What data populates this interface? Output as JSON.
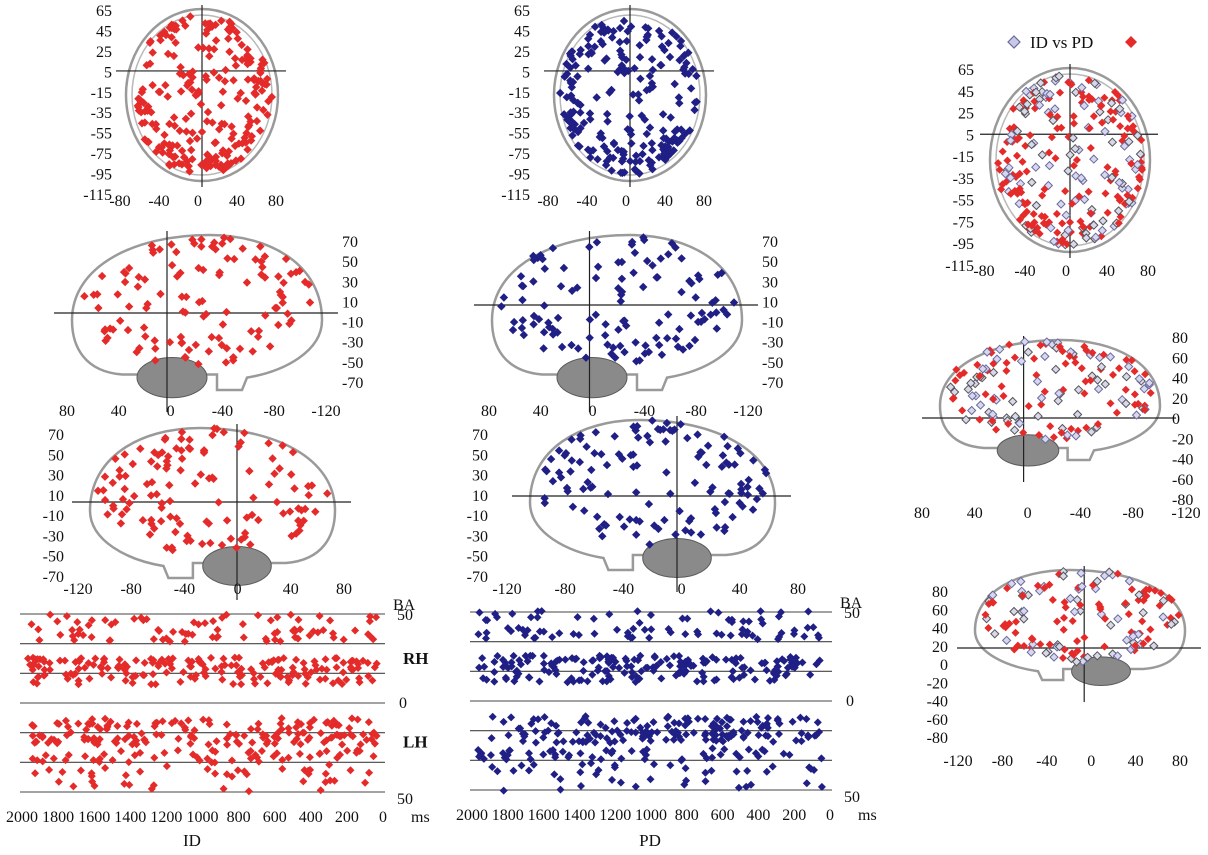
{
  "colors": {
    "ID": "#e52a2a",
    "PD": "#1f1f86",
    "PD_legend": "#8a8ab8",
    "overlay_gray": "#6a6a6a"
  },
  "captions": {
    "id": "ID",
    "pd": "PD"
  },
  "legend": {
    "text": "ID vs PD"
  },
  "time_axis": {
    "labels": [
      "2000",
      "1800",
      "1600",
      "1400",
      "1200",
      "1000",
      "800",
      "600",
      "400",
      "200",
      "0"
    ],
    "unit": "ms",
    "ba_label": "BA",
    "ba_top": "50",
    "ba_mid": "0",
    "ba_bottom": "50",
    "rh": "RH",
    "lh": "LH"
  },
  "chart_data": [
    {
      "panel": "ID-axial",
      "type": "scatter",
      "series": [
        {
          "name": "ID",
          "color": "#e52a2a"
        }
      ],
      "x_ticks": [
        "-80",
        "-40",
        "0",
        "40",
        "80"
      ],
      "y_ticks": [
        "65",
        "45",
        "25",
        "5",
        "-15",
        "-35",
        "-55",
        "-75",
        "-95",
        "-115"
      ],
      "xlim": [
        -80,
        80
      ],
      "ylim": [
        -115,
        65
      ]
    },
    {
      "panel": "PD-axial",
      "type": "scatter",
      "series": [
        {
          "name": "PD",
          "color": "#1f1f86"
        }
      ],
      "x_ticks": [
        "-80",
        "-40",
        "0",
        "40",
        "80"
      ],
      "y_ticks": [
        "65",
        "45",
        "25",
        "5",
        "-15",
        "-35",
        "-55",
        "-75",
        "-95",
        "-115"
      ],
      "xlim": [
        -80,
        80
      ],
      "ylim": [
        -115,
        65
      ]
    },
    {
      "panel": "ID-sagittal-right",
      "type": "scatter",
      "series": [
        {
          "name": "ID",
          "color": "#e52a2a"
        }
      ],
      "x_ticks": [
        "80",
        "40",
        "0",
        "-40",
        "-80",
        "-120"
      ],
      "y_ticks": [
        "70",
        "50",
        "30",
        "10",
        "-10",
        "-30",
        "-50",
        "-70"
      ],
      "xlim": [
        80,
        -120
      ],
      "ylim": [
        -70,
        70
      ]
    },
    {
      "panel": "PD-sagittal-right",
      "type": "scatter",
      "series": [
        {
          "name": "PD",
          "color": "#1f1f86"
        }
      ],
      "x_ticks": [
        "80",
        "40",
        "0",
        "-40",
        "-80",
        "-120"
      ],
      "y_ticks": [
        "70",
        "50",
        "30",
        "10",
        "-10",
        "-30",
        "-50",
        "-70"
      ],
      "xlim": [
        80,
        -120
      ],
      "ylim": [
        -70,
        70
      ]
    },
    {
      "panel": "ID-sagittal-left",
      "type": "scatter",
      "series": [
        {
          "name": "ID",
          "color": "#e52a2a"
        }
      ],
      "x_ticks": [
        "-120",
        "-80",
        "-40",
        "0",
        "40",
        "80"
      ],
      "y_ticks": [
        "70",
        "50",
        "30",
        "10",
        "-10",
        "-30",
        "-50",
        "-70"
      ],
      "xlim": [
        -120,
        80
      ],
      "ylim": [
        -70,
        70
      ]
    },
    {
      "panel": "PD-sagittal-left",
      "type": "scatter",
      "series": [
        {
          "name": "PD",
          "color": "#1f1f86"
        }
      ],
      "x_ticks": [
        "-120",
        "-80",
        "-40",
        "0",
        "40",
        "80"
      ],
      "y_ticks": [
        "70",
        "50",
        "30",
        "10",
        "-10",
        "-30",
        "-50",
        "-70"
      ],
      "xlim": [
        -120,
        80
      ],
      "ylim": [
        -70,
        70
      ]
    },
    {
      "panel": "ID-time-BA",
      "type": "scatter",
      "series": [
        {
          "name": "ID",
          "color": "#e52a2a"
        }
      ],
      "x_ticks": [
        "2000",
        "1800",
        "1600",
        "1400",
        "1200",
        "1000",
        "800",
        "600",
        "400",
        "200",
        "0"
      ],
      "xlim": [
        2000,
        0
      ],
      "x_unit": "ms",
      "y_ticks": [
        "50",
        "0",
        "50"
      ]
    },
    {
      "panel": "PD-time-BA",
      "type": "scatter",
      "series": [
        {
          "name": "PD",
          "color": "#1f1f86"
        }
      ],
      "x_ticks": [
        "2000",
        "1800",
        "1600",
        "1400",
        "1200",
        "1000",
        "800",
        "600",
        "400",
        "200",
        "0"
      ],
      "xlim": [
        2000,
        0
      ],
      "x_unit": "ms",
      "y_ticks": [
        "50",
        "0",
        "50"
      ]
    },
    {
      "panel": "overlay-axial",
      "type": "scatter",
      "series": [
        {
          "name": "ID",
          "color": "#e52a2a"
        },
        {
          "name": "PD",
          "color": "#8a8ab8"
        }
      ],
      "x_ticks": [
        "-80",
        "-40",
        "0",
        "40",
        "80"
      ],
      "y_ticks": [
        "65",
        "45",
        "25",
        "5",
        "-15",
        "-35",
        "-55",
        "-75",
        "-95",
        "-115"
      ],
      "xlim": [
        -80,
        80
      ],
      "ylim": [
        -115,
        65
      ]
    },
    {
      "panel": "overlay-sagittal-right",
      "type": "scatter",
      "series": [
        {
          "name": "ID",
          "color": "#e52a2a"
        },
        {
          "name": "PD",
          "color": "#8a8ab8"
        }
      ],
      "x_ticks": [
        "80",
        "40",
        "0",
        "-40",
        "-80",
        "-120"
      ],
      "y_ticks": [
        "80",
        "60",
        "40",
        "20",
        "0",
        "-20",
        "-40",
        "-60",
        "-80"
      ],
      "xlim": [
        80,
        -120
      ],
      "ylim": [
        -80,
        80
      ]
    },
    {
      "panel": "overlay-sagittal-left",
      "type": "scatter",
      "series": [
        {
          "name": "ID",
          "color": "#e52a2a"
        },
        {
          "name": "PD",
          "color": "#8a8ab8"
        }
      ],
      "x_ticks": [
        "-120",
        "-80",
        "-40",
        "0",
        "40",
        "80"
      ],
      "y_ticks": [
        "80",
        "60",
        "40",
        "20",
        "0",
        "-20",
        "-40",
        "-60",
        "-80"
      ],
      "xlim": [
        -120,
        80
      ],
      "ylim": [
        -80,
        80
      ]
    }
  ]
}
